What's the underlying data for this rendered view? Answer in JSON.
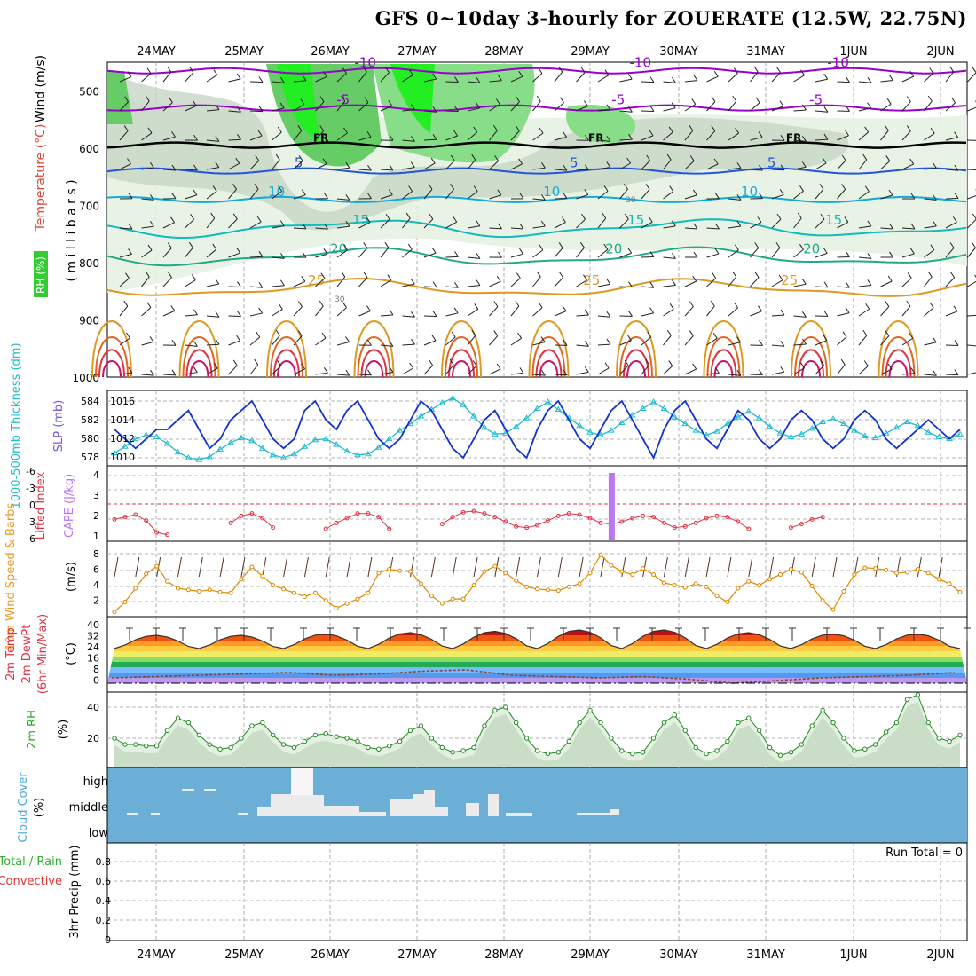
{
  "title": "GFS 0~10day 3-hourly for ZOUERATE (12.5W, 22.75N)",
  "dates": [
    "24MAY",
    "25MAY",
    "26MAY",
    "27MAY",
    "28MAY",
    "29MAY",
    "30MAY",
    "31MAY",
    "1JUN",
    "2JUN"
  ],
  "colors": {
    "grid": "#9a9a9a",
    "ocean": "#6baed6",
    "cloud": "#ececec"
  },
  "chart_data": [
    {
      "panel": "upper-air",
      "type": "contour",
      "ylabel_parts": [
        "RH (%)",
        "Temperature (°C)",
        "Wind (m/s)"
      ],
      "axis_label": "( m i l l i b a r s )",
      "ylim": [
        450,
        1000
      ],
      "yticks": [
        "500",
        "600",
        "700",
        "800",
        "900",
        "1000"
      ],
      "isotherms": [
        {
          "label": "-10",
          "level": 465,
          "color": "#9900cc"
        },
        {
          "label": "-5",
          "level": 530,
          "color": "#9900cc"
        },
        {
          "label": "FR",
          "level": 595,
          "color": "#000000"
        },
        {
          "label": "5",
          "level": 640,
          "color": "#2255dd"
        },
        {
          "label": "10",
          "level": 690,
          "color": "#11aadd"
        },
        {
          "label": "15",
          "level": 740,
          "color": "#11bbbb"
        },
        {
          "label": "20",
          "level": 790,
          "color": "#22aa88"
        },
        {
          "label": "25",
          "level": 845,
          "color": "#dd9922"
        }
      ],
      "rh_label": "30"
    },
    {
      "panel": "slp-thickness",
      "type": "line",
      "ylabel_left": "1000-500mb Thickness (dm)",
      "ylabel_right": "SLP (mb)",
      "left_ticks": [
        "584",
        "582",
        "580",
        "578"
      ],
      "right_ticks": [
        "1016",
        "1014",
        "1012",
        "1010"
      ],
      "series": [
        {
          "name": "SLP",
          "color": "#1133cc",
          "values": [
            1013,
            1012,
            1011,
            1012,
            1013,
            1013,
            1014,
            1015,
            1013,
            1011,
            1012,
            1014,
            1015,
            1016,
            1014,
            1012,
            1011,
            1012,
            1015,
            1016,
            1014,
            1013,
            1015,
            1016,
            1014,
            1012,
            1011,
            1012,
            1014,
            1016,
            1015,
            1013,
            1011,
            1010,
            1012,
            1014,
            1015,
            1013,
            1011,
            1010,
            1013,
            1015,
            1016,
            1014,
            1012,
            1011,
            1013,
            1015,
            1016,
            1014,
            1012,
            1010,
            1013,
            1015,
            1016,
            1014,
            1012,
            1011,
            1013,
            1015,
            1014,
            1012,
            1011,
            1012,
            1014,
            1015,
            1014,
            1012,
            1011,
            1012,
            1014,
            1015,
            1014,
            1012,
            1011,
            1012,
            1013,
            1014,
            1013,
            1012,
            1013
          ]
        },
        {
          "name": "Thickness",
          "color": "#22bbcc",
          "values": [
            578.5,
            579.2,
            580.0,
            580.4,
            580.2,
            579.5,
            578.6,
            578.0,
            577.8,
            578.1,
            578.9,
            579.6,
            580.1,
            579.8,
            579.0,
            578.3,
            578.0,
            578.4,
            579.2,
            579.9,
            580.0,
            579.4,
            578.7,
            578.3,
            578.4,
            579.1,
            580.0,
            580.9,
            581.6,
            582.4,
            583.1,
            583.8,
            584.3,
            583.6,
            582.4,
            581.2,
            580.5,
            580.6,
            581.3,
            582.2,
            583.2,
            583.9,
            583.1,
            582.2,
            581.4,
            580.7,
            580.4,
            580.9,
            581.7,
            582.5,
            583.2,
            583.9,
            583.2,
            582.3,
            581.6,
            580.9,
            580.4,
            580.8,
            581.6,
            582.3,
            582.9,
            582.2,
            581.3,
            580.6,
            580.2,
            580.5,
            581.1,
            581.8,
            582.1,
            581.6,
            580.9,
            580.3,
            580.1,
            580.6,
            581.2,
            581.8,
            581.4,
            580.7,
            580.2,
            580.0,
            580.5
          ]
        }
      ]
    },
    {
      "panel": "instability",
      "type": "line",
      "ylabel_left": "Lifted Index",
      "ylabel_right": "CAPE (J/kg)",
      "left_ticks": [
        "-6",
        "-3",
        "0",
        "3",
        "6"
      ],
      "right_ticks": [
        "4",
        "3",
        "2",
        "1"
      ],
      "series": [
        {
          "name": "Lifted Index",
          "color": "#dd3344",
          "values": [
            2.6,
            2.2,
            1.8,
            2.8,
            4.8,
            5.2,
            null,
            null,
            null,
            null,
            null,
            3.2,
            2.0,
            1.6,
            2.4,
            4.0,
            null,
            null,
            null,
            null,
            4.2,
            3.2,
            2.4,
            1.6,
            1.6,
            2.2,
            4.2,
            null,
            null,
            null,
            null,
            3.4,
            2.2,
            1.4,
            1.2,
            1.6,
            2.2,
            3.0,
            3.8,
            4.0,
            3.6,
            2.8,
            2.0,
            1.6,
            1.8,
            2.4,
            3.2,
            3.4,
            3.0,
            2.4,
            2.0,
            2.2,
            3.2,
            4.0,
            3.8,
            3.2,
            2.4,
            2.0,
            2.2,
            3.0,
            4.2,
            null,
            null,
            null,
            4.0,
            3.4,
            2.6,
            2.2
          ]
        },
        {
          "name": "CAPE",
          "color": "#bb77ee",
          "bar_at_index": 47,
          "bar_value": 4.2
        }
      ]
    },
    {
      "panel": "wind10m",
      "type": "line",
      "ylabel_left": "10m Wind Speed & Barbs",
      "ylabel_right": "(m/s)",
      "yticks": [
        "8",
        "6",
        "4",
        "2"
      ],
      "series": [
        {
          "name": "10m Wind Speed",
          "color": "#dd8800",
          "values": [
            0.5,
            1.8,
            3.6,
            5.5,
            6.5,
            4.5,
            3.6,
            3.4,
            3.2,
            3.4,
            3.1,
            3.0,
            4.8,
            6.4,
            5.2,
            4.0,
            3.5,
            3.0,
            2.5,
            3.0,
            2.0,
            1.0,
            1.6,
            2.2,
            3.0,
            5.6,
            6.1,
            5.9,
            5.8,
            4.2,
            2.6,
            1.6,
            2.2,
            2.2,
            4.0,
            5.8,
            6.5,
            5.6,
            4.6,
            3.8,
            3.5,
            3.4,
            3.3,
            3.8,
            4.2,
            5.6,
            8.0,
            6.6,
            5.8,
            5.4,
            6.2,
            5.4,
            4.3,
            4.0,
            3.7,
            4.2,
            3.8,
            2.6,
            1.8,
            3.6,
            4.5,
            4.0,
            4.8,
            5.4,
            6.1,
            5.7,
            3.9,
            2.0,
            0.8,
            3.2,
            5.4,
            6.3,
            6.2,
            6.0,
            5.6,
            5.7,
            6.1,
            5.6,
            4.8,
            4.2,
            3.1
          ]
        }
      ]
    },
    {
      "panel": "temperature",
      "type": "area",
      "ylabel_left": "2m Temp 2m DewPt (6hr Min/Max)",
      "ylabel_right": "(°C)",
      "yticks": [
        "40",
        "32",
        "24",
        "16",
        "8",
        "0"
      ],
      "series": [
        {
          "name": "2m Temp",
          "color": "#222222",
          "min": 26,
          "max": [
            36,
            36,
            37,
            38,
            39,
            40,
            40,
            38,
            37,
            37
          ]
        },
        {
          "name": "2m DewPt",
          "color": "#884433",
          "values": [
            4,
            5,
            6,
            7,
            8,
            6,
            7,
            9,
            10,
            6,
            5,
            4,
            5,
            3,
            0,
            2,
            4,
            5,
            6,
            8
          ]
        }
      ]
    },
    {
      "panel": "rh2m",
      "type": "area",
      "ylabel_left": "2m RH",
      "ylabel_right": "(%)",
      "yticks": [
        "40",
        "20"
      ],
      "series": [
        {
          "name": "2m RH",
          "color": "#228822",
          "values": [
            20,
            16,
            16,
            15,
            15,
            25,
            33,
            30,
            22,
            16,
            13,
            14,
            20,
            28,
            30,
            22,
            16,
            14,
            18,
            22,
            23,
            21,
            20,
            18,
            14,
            13,
            15,
            18,
            25,
            28,
            20,
            14,
            11,
            12,
            14,
            28,
            38,
            40,
            30,
            20,
            12,
            10,
            11,
            18,
            30,
            38,
            30,
            20,
            12,
            10,
            11,
            20,
            30,
            35,
            25,
            14,
            10,
            12,
            18,
            30,
            33,
            25,
            14,
            9,
            11,
            16,
            28,
            38,
            30,
            20,
            12,
            13,
            16,
            24,
            30,
            45,
            48,
            30,
            20,
            18,
            22
          ]
        }
      ]
    },
    {
      "panel": "cloud",
      "type": "heatmap",
      "ylabel_left": "Cloud Cover",
      "ylabel_right": "(%)",
      "levels": [
        "high",
        "middle",
        "low"
      ]
    },
    {
      "panel": "precip",
      "type": "bar",
      "ylabel_left": "Total / Rain",
      "ylabel_left2": "Convective",
      "ylabel_right": "3hr Precip (mm)",
      "yticks": [
        "0.8",
        "0.6",
        "0.4",
        "0.2",
        "0"
      ],
      "run_total": "Run Total = 0"
    }
  ]
}
